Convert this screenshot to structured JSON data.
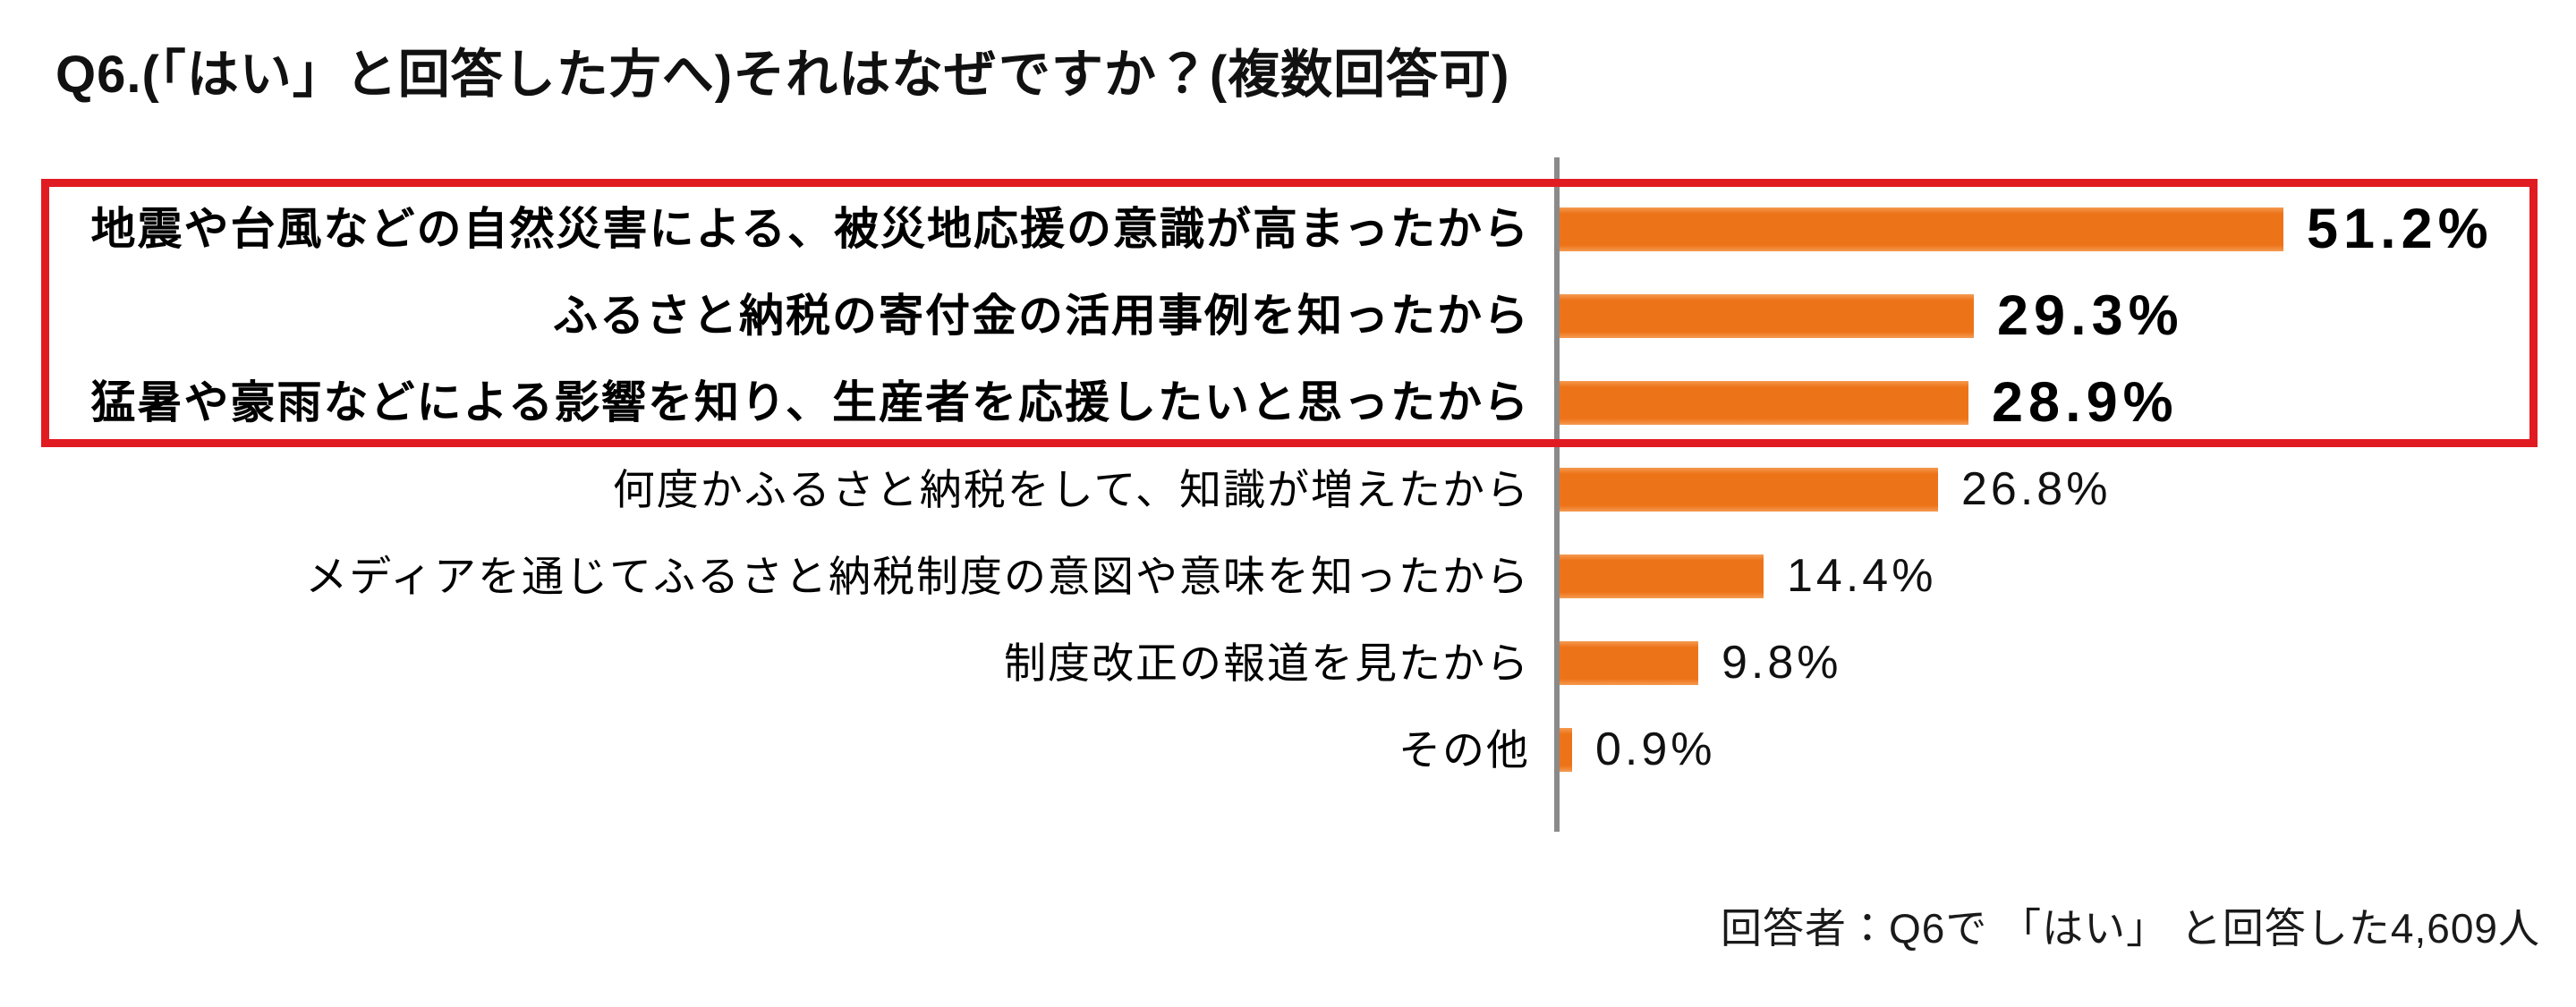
{
  "title": "Q6.(「はい」と回答した方へ)それはなぜですか？(複数回答可)",
  "footer": "回答者：Q6で 「はい」 と回答した4,609人",
  "chart_data": {
    "type": "bar",
    "orientation": "horizontal",
    "unit": "%",
    "title": "Q6.(「はい」と回答した方へ)それはなぜですか？(複数回答可)",
    "categories": [
      "地震や台風などの自然災害による、被災地応援の意識が高まったから",
      "ふるさと納税の寄付金の活用事例を知ったから",
      "猛暑や豪雨などによる影響を知り、生産者を応援したいと思ったから",
      "何度かふるさと納税をして、知識が増えたから",
      "メディアを通じてふるさと納税制度の意図や意味を知ったから",
      "制度改正の報道を見たから",
      "その他"
    ],
    "values": [
      51.2,
      29.3,
      28.9,
      26.8,
      14.4,
      9.8,
      0.9
    ],
    "value_labels": [
      "51.2%",
      "29.3%",
      "28.9%",
      "26.8%",
      "14.4%",
      "9.8%",
      "0.9%"
    ],
    "highlighted_indices": [
      0,
      1,
      2
    ],
    "annotation": "回答者：Q6で 「はい」 と回答した4,609人",
    "xlim": [
      0,
      60
    ],
    "grid": false,
    "legend": false,
    "colors": {
      "bar": "#ED7318",
      "bar_edge_light": "#F59B52",
      "highlight_box": "#E11B22",
      "axis": "#8A8A8A"
    }
  }
}
